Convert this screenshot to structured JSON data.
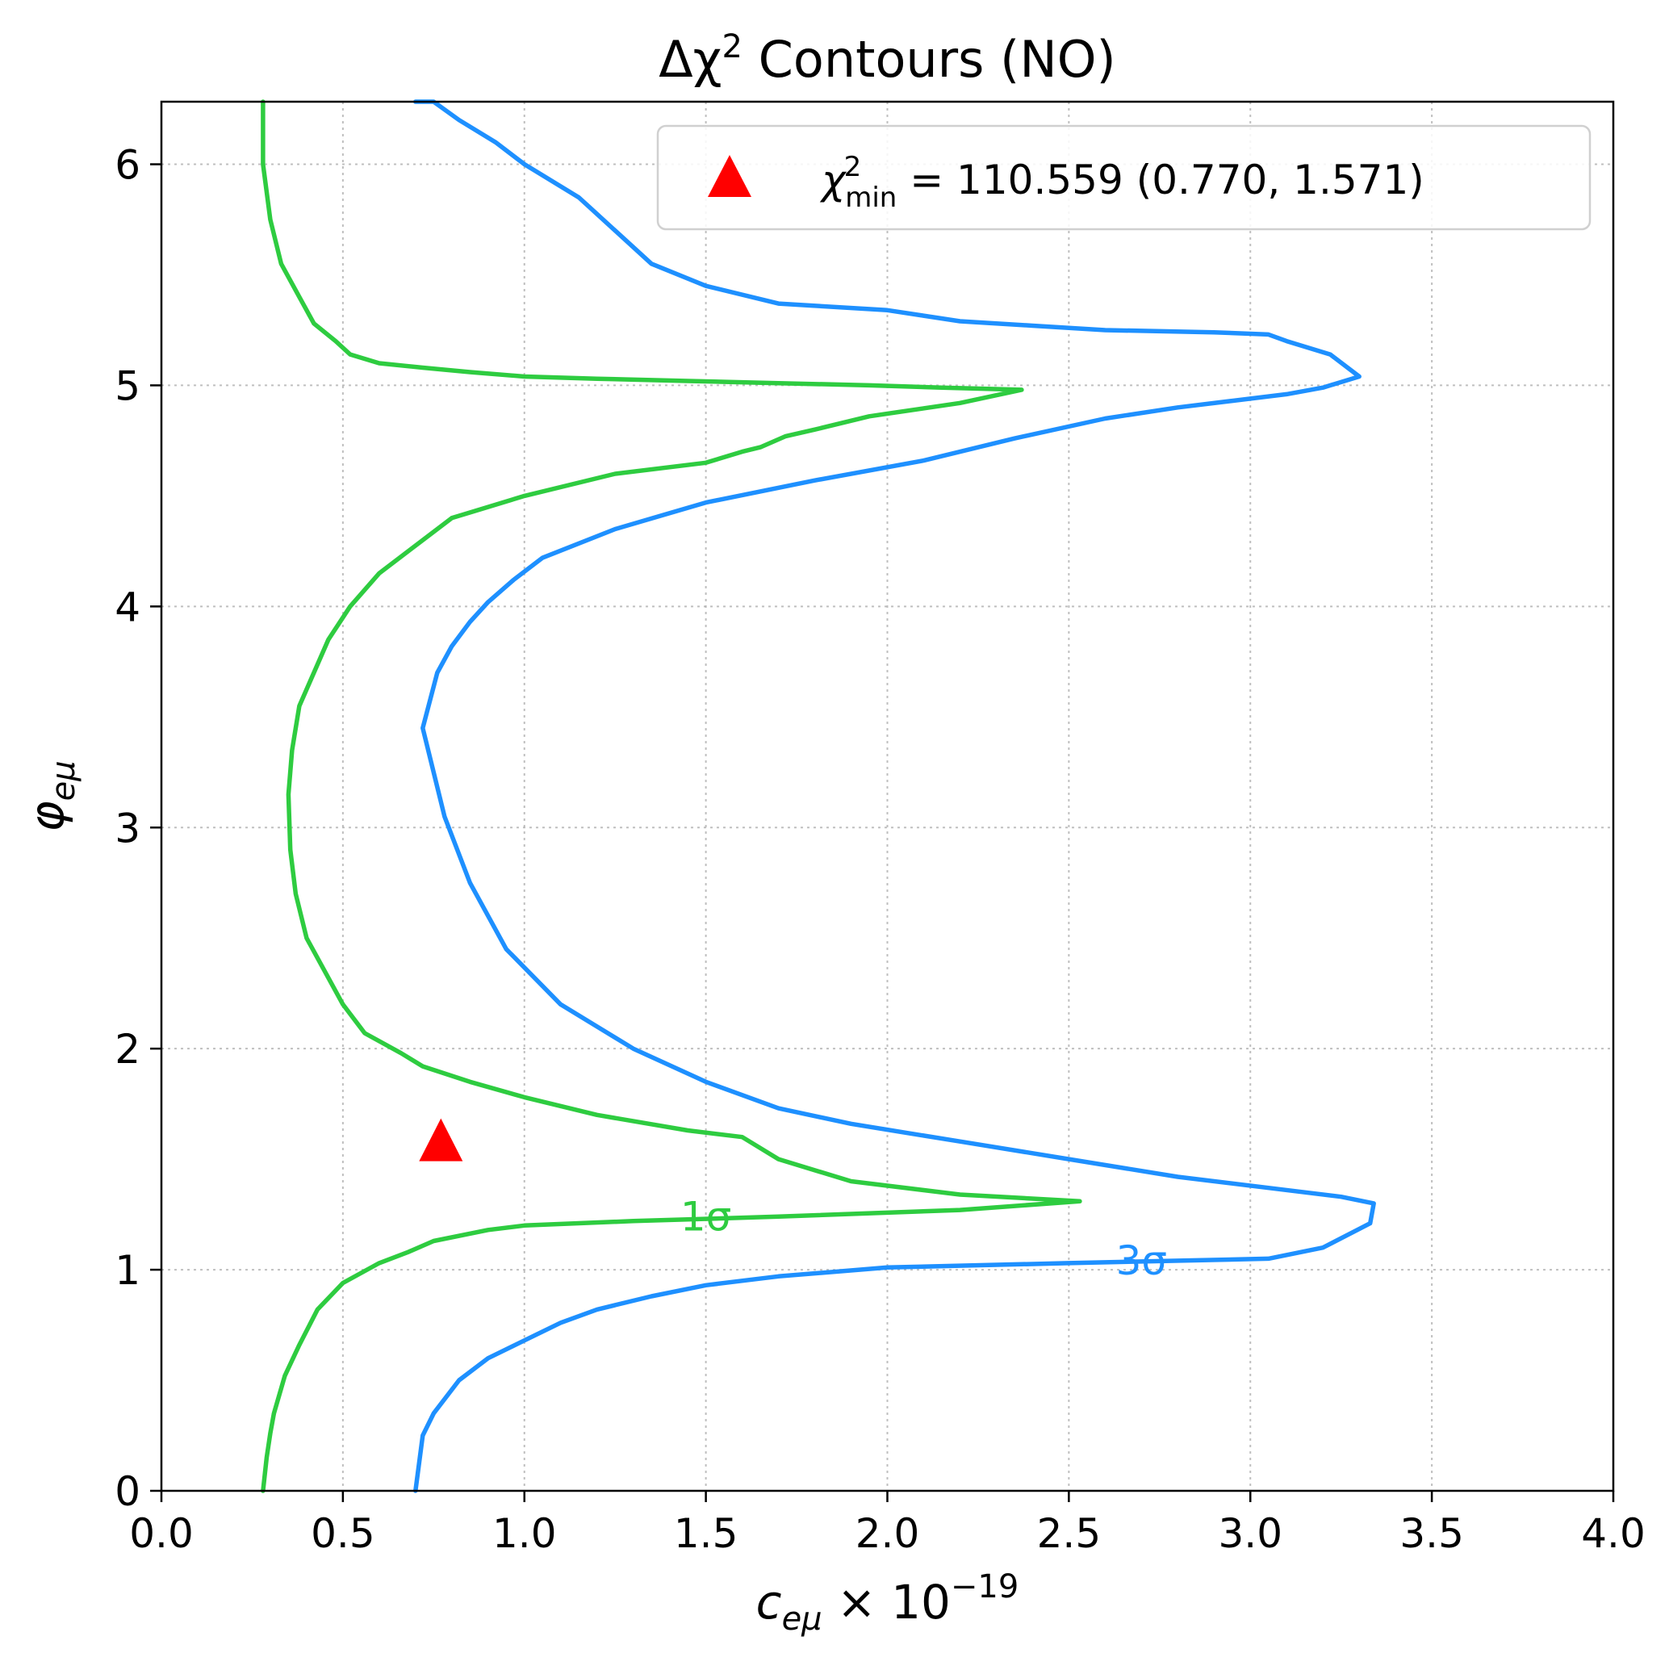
{
  "chart_data": {
    "type": "line",
    "title": {
      "base": "Δχ",
      "sup": "2",
      "rest": " Contours (NO)"
    },
    "xlabel": {
      "var": "c",
      "sub": "eμ",
      "mult": " × 10",
      "exp": "−19"
    },
    "ylabel": {
      "var": "φ",
      "sub": "eμ"
    },
    "xlim": [
      0,
      4
    ],
    "ylim": [
      0,
      6.283
    ],
    "xticks": [
      0.0,
      0.5,
      1.0,
      1.5,
      2.0,
      2.5,
      3.0,
      3.5,
      4.0
    ],
    "xtick_labels": [
      "0.0",
      "0.5",
      "1.0",
      "1.5",
      "2.0",
      "2.5",
      "3.0",
      "3.5",
      "4.0"
    ],
    "yticks": [
      0,
      1,
      2,
      3,
      4,
      5,
      6
    ],
    "ytick_labels": [
      "0",
      "1",
      "2",
      "3",
      "4",
      "5",
      "6"
    ],
    "grid": true,
    "legend": {
      "placement": "top-right",
      "label": {
        "sym": "χ",
        "sup": "2",
        "sub": "min",
        "text": " = 110.559 (0.770, 1.571)"
      }
    },
    "best_fit": {
      "x": 0.77,
      "y": 1.571,
      "marker": "triangle",
      "color": "#ff0000"
    },
    "contours": [
      {
        "level_label": "1σ",
        "color": "#2ecc40",
        "label_pos": {
          "x": 1.5,
          "y": 1.24
        },
        "x": [
          0.28,
          0.28,
          0.3,
          0.33,
          0.38,
          0.42,
          0.48,
          0.52,
          0.6,
          0.72,
          0.85,
          1.0,
          1.2,
          1.45,
          1.7,
          1.95,
          2.15,
          2.37,
          2.2,
          1.95,
          1.8,
          1.72,
          1.65,
          1.6,
          1.5,
          1.25,
          1.0,
          0.8,
          0.72,
          0.6,
          0.52,
          0.46,
          0.42,
          0.38,
          0.36,
          0.35,
          0.355,
          0.37,
          0.4,
          0.45,
          0.5,
          0.56,
          0.66,
          0.72,
          0.85,
          1.0,
          1.2,
          1.45,
          1.6,
          1.7,
          1.9,
          2.2,
          2.53,
          2.2,
          1.7,
          1.3,
          1.0,
          0.9,
          0.75,
          0.68,
          0.6,
          0.5,
          0.43,
          0.38,
          0.34,
          0.31,
          0.3,
          0.29,
          0.28
        ],
        "y": [
          6.283,
          6.0,
          5.75,
          5.55,
          5.4,
          5.28,
          5.2,
          5.14,
          5.1,
          5.08,
          5.06,
          5.04,
          5.03,
          5.02,
          5.01,
          5.0,
          4.99,
          4.98,
          4.92,
          4.86,
          4.8,
          4.77,
          4.72,
          4.7,
          4.65,
          4.6,
          4.5,
          4.4,
          4.3,
          4.15,
          4.0,
          3.85,
          3.7,
          3.55,
          3.35,
          3.15,
          2.9,
          2.7,
          2.5,
          2.35,
          2.2,
          2.07,
          1.98,
          1.92,
          1.85,
          1.78,
          1.7,
          1.63,
          1.6,
          1.5,
          1.4,
          1.34,
          1.31,
          1.27,
          1.24,
          1.22,
          1.2,
          1.18,
          1.13,
          1.08,
          1.03,
          0.94,
          0.82,
          0.66,
          0.52,
          0.35,
          0.26,
          0.15,
          0.0
        ]
      },
      {
        "level_label": "3σ",
        "color": "#1e90ff",
        "label_pos": {
          "x": 2.7,
          "y": 1.04
        },
        "x": [
          0.7,
          0.72,
          0.75,
          0.82,
          0.9,
          1.0,
          1.1,
          1.2,
          1.35,
          1.5,
          1.7,
          2.0,
          2.5,
          3.05,
          3.2,
          3.33,
          3.34,
          3.25,
          3.15,
          3.05,
          2.8,
          2.5,
          2.2,
          2.05,
          1.9,
          1.7,
          1.5,
          1.3,
          1.1,
          0.95,
          0.85,
          0.78,
          0.75,
          0.72,
          0.76,
          0.8,
          0.85,
          0.9,
          0.97,
          1.05,
          1.25,
          1.5,
          1.8,
          2.1,
          2.35,
          2.6,
          2.8,
          2.95,
          3.1,
          3.2,
          3.3,
          3.22,
          3.1,
          3.05,
          2.9,
          2.6,
          2.4,
          2.2,
          2.0,
          1.7,
          1.5,
          1.35,
          1.25,
          1.15,
          1.0,
          0.92,
          0.82,
          0.75,
          0.7
        ],
        "y": [
          0.0,
          0.25,
          0.35,
          0.5,
          0.6,
          0.68,
          0.76,
          0.82,
          0.88,
          0.93,
          0.97,
          1.01,
          1.03,
          1.05,
          1.1,
          1.21,
          1.3,
          1.33,
          1.35,
          1.37,
          1.42,
          1.5,
          1.58,
          1.62,
          1.66,
          1.73,
          1.85,
          2.0,
          2.2,
          2.45,
          2.75,
          3.05,
          3.25,
          3.45,
          3.7,
          3.82,
          3.93,
          4.02,
          4.12,
          4.22,
          4.35,
          4.47,
          4.57,
          4.66,
          4.76,
          4.85,
          4.9,
          4.93,
          4.96,
          4.99,
          5.04,
          5.14,
          5.2,
          5.23,
          5.24,
          5.25,
          5.27,
          5.29,
          5.34,
          5.37,
          5.45,
          5.55,
          5.7,
          5.85,
          6.0,
          6.1,
          6.2,
          6.283,
          6.283
        ]
      }
    ]
  }
}
